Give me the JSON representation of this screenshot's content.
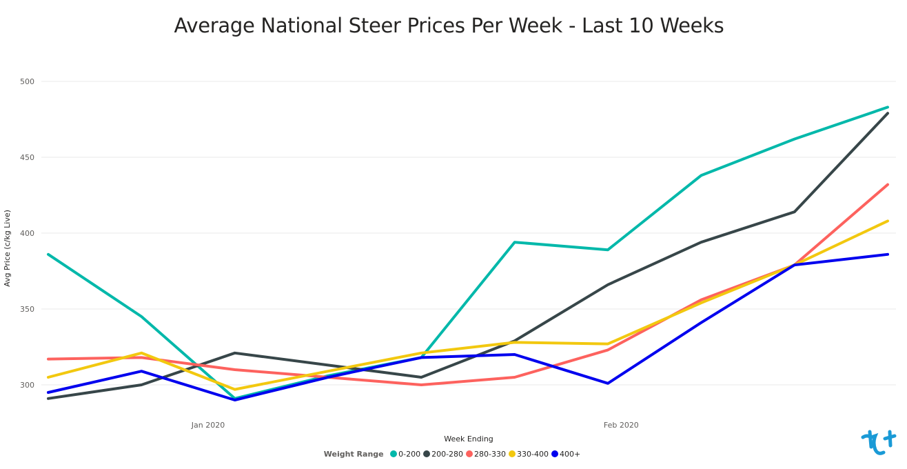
{
  "chart_data": {
    "type": "line",
    "title": "Average National Steer Prices Per Week - Last 10 Weeks",
    "xlabel": "Week Ending",
    "ylabel": "Avg Price (c/kg Live)",
    "ylim": [
      290,
      500
    ],
    "yticks": [
      300,
      350,
      400,
      450,
      500
    ],
    "x": [
      "2019-12-20",
      "2019-12-27",
      "2020-01-03",
      "2020-01-10",
      "2020-01-17",
      "2020-01-24",
      "2020-01-31",
      "2020-02-07",
      "2020-02-14",
      "2020-02-21"
    ],
    "xtick_labels": [
      {
        "at": "2020-01-01",
        "label": "Jan 2020"
      },
      {
        "at": "2020-02-01",
        "label": "Feb 2020"
      }
    ],
    "grid": true,
    "legend": {
      "title": "Weight Range",
      "position": "bottom-center"
    },
    "series": [
      {
        "name": "0-200",
        "color": "#01b8aa",
        "values": [
          386,
          345,
          291,
          306,
          318,
          394,
          389,
          438,
          462,
          483
        ]
      },
      {
        "name": "200-280",
        "color": "#374649",
        "values": [
          291,
          300,
          321,
          313,
          305,
          329,
          366,
          394,
          414,
          479
        ]
      },
      {
        "name": "280-330",
        "color": "#fd625e",
        "values": [
          317,
          318,
          310,
          305,
          300,
          305,
          323,
          356,
          379,
          432
        ]
      },
      {
        "name": "330-400",
        "color": "#f2c80f",
        "values": [
          305,
          321,
          297,
          309,
          321,
          328,
          327,
          354,
          379,
          408
        ]
      },
      {
        "name": "400+",
        "color": "#0000ee",
        "values": [
          295,
          309,
          290,
          305,
          318,
          320,
          301,
          341,
          379,
          386
        ]
      }
    ]
  },
  "logo": {
    "name": "brand-logo",
    "color": "#1a9ad6"
  }
}
